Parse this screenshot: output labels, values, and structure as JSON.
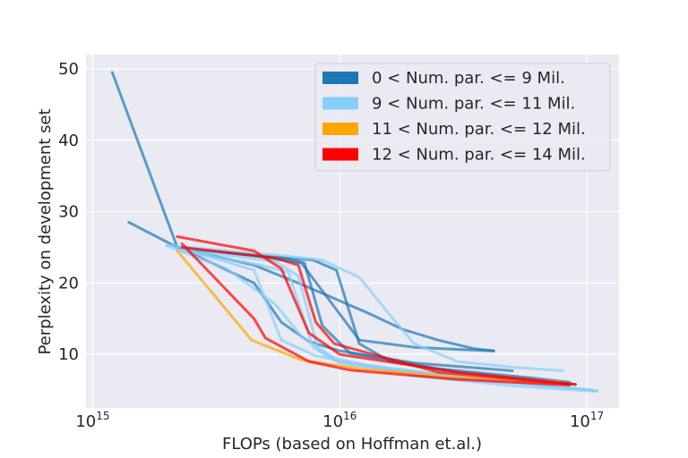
{
  "chart_data": {
    "type": "line",
    "xlabel": "FLOPs (based on Hoffman et.al.)",
    "ylabel": "Perplexity on development set",
    "xscale": "log",
    "xlim": [
      940000000000000.0,
      1.35e+17
    ],
    "ylim": [
      2.5,
      52
    ],
    "x_ticks": [
      {
        "value": 1000000000000000.0,
        "base": "10",
        "exp": "15"
      },
      {
        "value": 1e+16,
        "base": "10",
        "exp": "16"
      },
      {
        "value": 1e+17,
        "base": "10",
        "exp": "17"
      }
    ],
    "y_ticks": [
      {
        "value": 10,
        "label": "10"
      },
      {
        "value": 20,
        "label": "20"
      },
      {
        "value": 30,
        "label": "30"
      },
      {
        "value": 40,
        "label": "40"
      },
      {
        "value": 50,
        "label": "50"
      }
    ],
    "grid": true,
    "legend_position": "top-right",
    "legend": [
      {
        "label": "0 < Num. par. <= 9 Mil.",
        "color": "#1f77b4"
      },
      {
        "label": "9 < Num. par. <= 11 Mil.",
        "color": "#87cefa"
      },
      {
        "label": "11 < Num. par. <= 12 Mil.",
        "color": "#ffa500"
      },
      {
        "label": "12 < Num. par. <= 14 Mil.",
        "color": "#ff0000"
      }
    ],
    "series": [
      {
        "group": 0,
        "x": [
          1200000000000000.0,
          2200000000000000.0,
          4500000000000000.0,
          7000000000000000.0,
          1.2e+16,
          2e+16,
          3e+16,
          4.2e+16
        ],
        "y": [
          49.5,
          25.0,
          23.8,
          22.8,
          12.0,
          11.0,
          10.7,
          10.5
        ]
      },
      {
        "group": 0,
        "x": [
          1400000000000000.0,
          2200000000000000.0,
          4500000000000000.0,
          7000000000000000.0,
          1e+16,
          1.3e+16,
          1.8e+16,
          2.5e+16,
          3.5e+16,
          4.2e+16
        ],
        "y": [
          28.5,
          25.0,
          22.5,
          19.8,
          17.5,
          15.8,
          13.5,
          12.0,
          10.8,
          10.5
        ]
      },
      {
        "group": 0,
        "x": [
          2300000000000000.0,
          4500000000000000.0,
          5800000000000000.0,
          7500000000000000.0,
          1e+16,
          2e+16,
          5e+16
        ],
        "y": [
          24.8,
          20.0,
          14.5,
          11.8,
          10.5,
          8.8,
          7.7
        ]
      },
      {
        "group": 0,
        "x": [
          2300000000000000.0,
          6000000000000000.0,
          7200000000000000.0,
          8500000000000000.0,
          1.1e+16,
          2.5e+16,
          6e+16,
          8.5e+16
        ],
        "y": [
          24.8,
          23.5,
          22.8,
          14.0,
          10.2,
          8.0,
          6.7,
          6.1
        ]
      },
      {
        "group": 0,
        "x": [
          2300000000000000.0,
          7800000000000000.0,
          9700000000000000.0,
          1.2e+16,
          1.6e+16,
          3e+16,
          7e+16,
          9e+16
        ],
        "y": [
          24.8,
          23.2,
          21.8,
          11.5,
          9.0,
          7.5,
          6.2,
          5.8
        ]
      },
      {
        "group": 1,
        "x": [
          2000000000000000.0,
          3500000000000000.0,
          6000000000000000.0,
          8500000000000000.0,
          1.2e+16,
          1.6e+16,
          2e+16,
          3e+16,
          5e+16,
          8e+16
        ],
        "y": [
          25.3,
          24.5,
          23.8,
          23.2,
          20.8,
          15.5,
          11.5,
          9.0,
          8.2,
          7.7
        ]
      },
      {
        "group": 1,
        "x": [
          2000000000000000.0,
          3500000000000000.0,
          5500000000000000.0,
          7000000000000000.0,
          9500000000000000.0,
          2e+16,
          5e+16,
          1.1e+17
        ],
        "y": [
          25.2,
          22.0,
          17.0,
          12.5,
          9.5,
          7.0,
          5.6,
          4.8
        ]
      },
      {
        "group": 1,
        "x": [
          2200000000000000.0,
          4500000000000000.0,
          5800000000000000.0,
          8000000000000000.0,
          1.2e+16,
          3e+16,
          6e+16,
          1.1e+17
        ],
        "y": [
          25.0,
          21.8,
          12.0,
          9.8,
          8.5,
          7.0,
          5.8,
          4.9
        ]
      },
      {
        "group": 1,
        "x": [
          2300000000000000.0,
          4800000000000000.0,
          6200000000000000.0,
          7800000000000000.0,
          1e+16,
          2.5e+16,
          6e+16,
          1.05e+17
        ],
        "y": [
          24.5,
          22.5,
          21.5,
          11.0,
          8.8,
          6.8,
          5.8,
          5.0
        ]
      },
      {
        "group": 1,
        "x": [
          2300000000000000.0,
          5500000000000000.0,
          6800000000000000.0,
          8200000000000000.0,
          1e+16,
          2.8e+16,
          6.5e+16,
          1.05e+17
        ],
        "y": [
          24.7,
          23.0,
          21.0,
          10.5,
          9.0,
          7.0,
          5.8,
          5.0
        ]
      },
      {
        "group": 2,
        "x": [
          2200000000000000.0,
          4400000000000000.0,
          7000000000000000.0,
          1.2e+16,
          3e+16,
          7.8e+16
        ],
        "y": [
          24.5,
          12.0,
          9.2,
          8.0,
          6.8,
          6.1
        ]
      },
      {
        "group": 3,
        "x": [
          2300000000000000.0,
          4500000000000000.0,
          5000000000000000.0,
          7500000000000000.0,
          1.1e+16,
          3e+16,
          8.5e+16
        ],
        "y": [
          25.5,
          15.0,
          12.3,
          9.0,
          7.8,
          6.5,
          5.7
        ]
      },
      {
        "group": 3,
        "x": [
          2200000000000000.0,
          4500000000000000.0,
          5800000000000000.0,
          7500000000000000.0,
          1e+16,
          3e+16,
          9e+16
        ],
        "y": [
          26.5,
          24.5,
          22.0,
          13.0,
          10.0,
          7.5,
          5.8
        ]
      },
      {
        "group": 3,
        "x": [
          2300000000000000.0,
          5500000000000000.0,
          6800000000000000.0,
          8000000000000000.0,
          9500000000000000.0,
          2.5e+16,
          8.5e+16
        ],
        "y": [
          25.0,
          23.5,
          22.5,
          14.5,
          11.5,
          7.5,
          5.8
        ]
      }
    ]
  }
}
